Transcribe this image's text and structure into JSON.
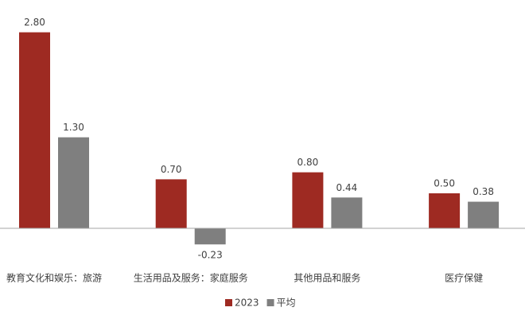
{
  "chart_data": {
    "type": "bar",
    "categories": [
      "教育文化和娱乐：旅游",
      "生活用品及服务：家庭服务",
      "其他用品和服务",
      "医疗保健"
    ],
    "series": [
      {
        "name": "2023",
        "color": "#9e2a22",
        "values": [
          2.8,
          0.7,
          0.8,
          0.5
        ],
        "value_labels": [
          "2.80",
          "0.70",
          "0.80",
          "0.50"
        ]
      },
      {
        "name": "平均",
        "color": "#7f7f7f",
        "values": [
          1.3,
          -0.23,
          0.44,
          0.38
        ],
        "value_labels": [
          "1.30",
          "-0.23",
          "0.44",
          "0.38"
        ]
      }
    ],
    "ylim": [
      -0.5,
      3.0
    ]
  }
}
